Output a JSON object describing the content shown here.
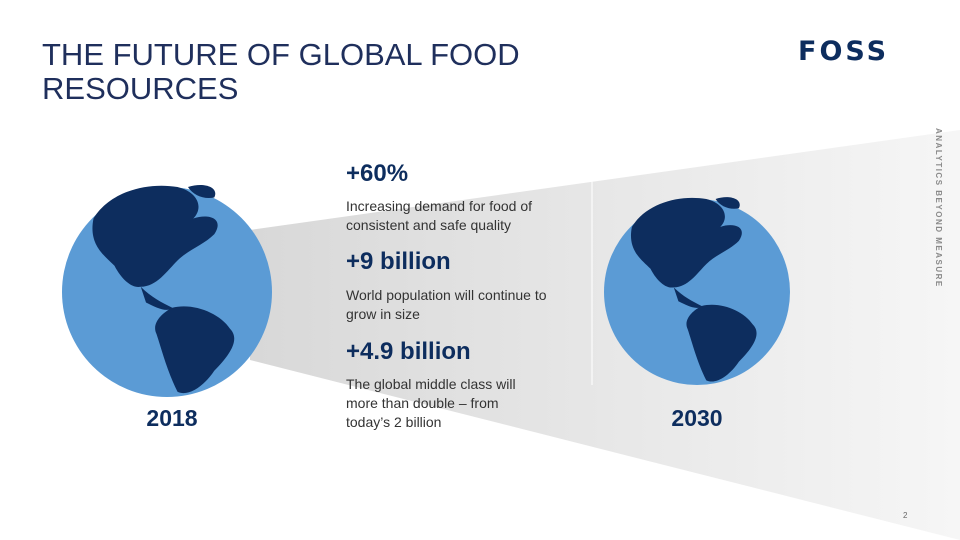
{
  "header": {
    "title": "THE FUTURE OF GLOBAL FOOD RESOURCES",
    "logo": "FOSS",
    "tagline": "ANALYTICS BEYOND MEASURE"
  },
  "stats": [
    {
      "figure": "+60%",
      "text": "Increasing demand for food of consistent and safe quality"
    },
    {
      "figure": "+9 billion",
      "text": "World population will continue to grow in size"
    },
    {
      "figure": "+4.9 billion",
      "text": "The global middle class will more than double – from today’s 2 billion"
    }
  ],
  "years": [
    "2018",
    "2030"
  ],
  "page_number": "2"
}
